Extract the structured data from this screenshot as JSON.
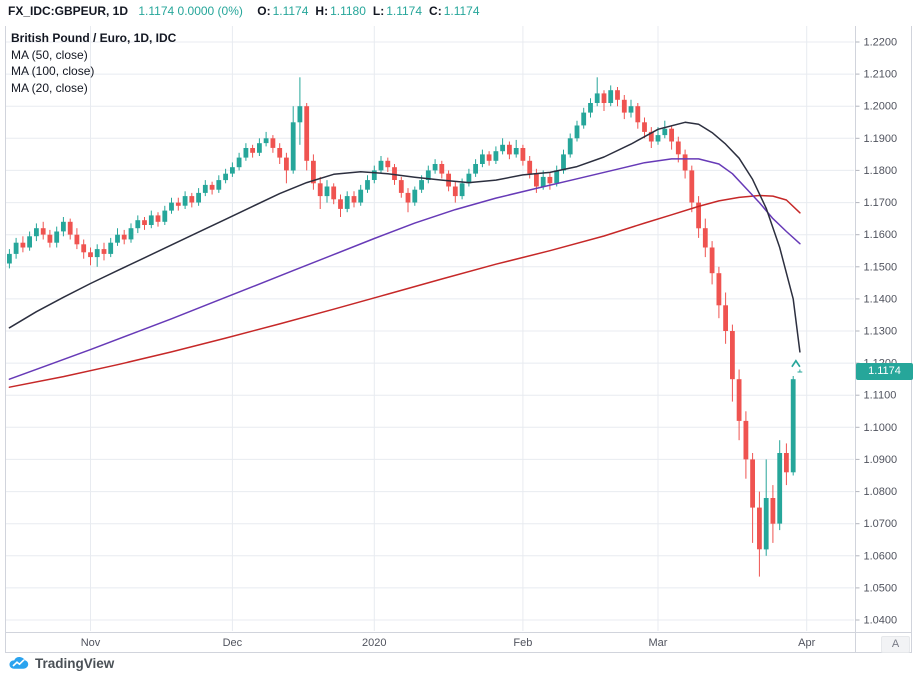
{
  "header": {
    "symbol_interval": "FX_IDC:GBPEUR, 1D",
    "last_change": "1.1174 0.0000 (0%)",
    "ohlc": [
      {
        "k": "O:",
        "v": "1.1174"
      },
      {
        "k": "H:",
        "v": "1.1180"
      },
      {
        "k": "L:",
        "v": "1.1174"
      },
      {
        "k": "C:",
        "v": "1.1174"
      }
    ]
  },
  "legend": {
    "title": "British Pound / Euro, 1D, IDC",
    "indicators": [
      "MA (50, close)",
      "MA (100, close)",
      "MA (20, close)"
    ]
  },
  "price_scale": {
    "last_price_label": "1.1174",
    "corner_button_label": "A"
  },
  "logo": {
    "text": "TradingView"
  },
  "colors": {
    "up": "#26a69a",
    "down": "#ef5350",
    "badge": "#26a69a",
    "grid": "#e8ebf0",
    "axis_text": "#50535e",
    "tick": "#b2b5be",
    "frame": "#d1d4dc",
    "ma20": "#2c2f3f",
    "ma50": "#673ab7",
    "ma100": "#c62828",
    "logo_blue": "#2aa3ef"
  },
  "chart_data": {
    "type": "candlestick",
    "title": "British Pound / Euro, 1D, IDC",
    "symbol": "FX_IDC:GBPEUR",
    "interval": "1D",
    "ylim": [
      1.04,
      1.22
    ],
    "y_step": 0.01,
    "grid": true,
    "y_ticks": [
      1.22,
      1.21,
      1.2,
      1.19,
      1.18,
      1.17,
      1.16,
      1.15,
      1.14,
      1.13,
      1.12,
      1.11,
      1.1,
      1.09,
      1.08,
      1.07,
      1.06,
      1.05,
      1.04
    ],
    "x_ticks": [
      {
        "label": "Nov",
        "i": 12
      },
      {
        "label": "Dec",
        "i": 33
      },
      {
        "label": "2020",
        "i": 54
      },
      {
        "label": "Feb",
        "i": 76
      },
      {
        "label": "Mar",
        "i": 96
      },
      {
        "label": "Apr",
        "i": 118
      }
    ],
    "candles": [
      [
        1.151,
        1.1555,
        1.1495,
        1.154
      ],
      [
        1.154,
        1.159,
        1.1525,
        1.1575
      ],
      [
        1.1575,
        1.1595,
        1.1545,
        1.156
      ],
      [
        1.156,
        1.161,
        1.155,
        1.1595
      ],
      [
        1.1595,
        1.1635,
        1.158,
        1.162
      ],
      [
        1.162,
        1.164,
        1.1585,
        1.16
      ],
      [
        1.16,
        1.1615,
        1.156,
        1.1575
      ],
      [
        1.1575,
        1.1625,
        1.156,
        1.161
      ],
      [
        1.161,
        1.1655,
        1.1595,
        1.164
      ],
      [
        1.164,
        1.165,
        1.1585,
        1.16
      ],
      [
        1.16,
        1.162,
        1.1555,
        1.157
      ],
      [
        1.157,
        1.1585,
        1.1525,
        1.1545
      ],
      [
        1.1545,
        1.156,
        1.1505,
        1.153
      ],
      [
        1.153,
        1.157,
        1.15,
        1.1555
      ],
      [
        1.1555,
        1.1575,
        1.152,
        1.154
      ],
      [
        1.154,
        1.159,
        1.153,
        1.1575
      ],
      [
        1.1575,
        1.162,
        1.1565,
        1.16
      ],
      [
        1.16,
        1.1615,
        1.157,
        1.1585
      ],
      [
        1.1585,
        1.1635,
        1.1575,
        1.162
      ],
      [
        1.162,
        1.166,
        1.1605,
        1.1645
      ],
      [
        1.1645,
        1.1655,
        1.1615,
        1.163
      ],
      [
        1.163,
        1.1675,
        1.162,
        1.166
      ],
      [
        1.166,
        1.167,
        1.1625,
        1.164
      ],
      [
        1.164,
        1.169,
        1.163,
        1.1675
      ],
      [
        1.1675,
        1.1715,
        1.1665,
        1.17
      ],
      [
        1.17,
        1.1715,
        1.1675,
        1.169
      ],
      [
        1.169,
        1.1735,
        1.168,
        1.172
      ],
      [
        1.172,
        1.173,
        1.1685,
        1.17
      ],
      [
        1.17,
        1.1745,
        1.169,
        1.173
      ],
      [
        1.173,
        1.177,
        1.172,
        1.1755
      ],
      [
        1.1755,
        1.1765,
        1.1725,
        1.174
      ],
      [
        1.174,
        1.1785,
        1.173,
        1.177
      ],
      [
        1.177,
        1.1805,
        1.176,
        1.179
      ],
      [
        1.179,
        1.1825,
        1.178,
        1.181
      ],
      [
        1.181,
        1.1855,
        1.18,
        1.184
      ],
      [
        1.184,
        1.1885,
        1.183,
        1.187
      ],
      [
        1.187,
        1.188,
        1.184,
        1.1855
      ],
      [
        1.1855,
        1.19,
        1.1845,
        1.1885
      ],
      [
        1.1885,
        1.192,
        1.1875,
        1.19
      ],
      [
        1.19,
        1.191,
        1.1855,
        1.187
      ],
      [
        1.187,
        1.1885,
        1.182,
        1.184
      ],
      [
        1.184,
        1.1855,
        1.176,
        1.18
      ],
      [
        1.18,
        1.2,
        1.179,
        1.195
      ],
      [
        1.195,
        1.209,
        1.188,
        1.2
      ],
      [
        1.2,
        1.201,
        1.18,
        1.183
      ],
      [
        1.183,
        1.185,
        1.174,
        1.176
      ],
      [
        1.176,
        1.178,
        1.168,
        1.172
      ],
      [
        1.172,
        1.177,
        1.17,
        1.175
      ],
      [
        1.175,
        1.176,
        1.1695,
        1.171
      ],
      [
        1.171,
        1.1725,
        1.1655,
        1.168
      ],
      [
        1.168,
        1.1735,
        1.167,
        1.172
      ],
      [
        1.172,
        1.1735,
        1.1685,
        1.17
      ],
      [
        1.17,
        1.1755,
        1.169,
        1.174
      ],
      [
        1.174,
        1.1785,
        1.173,
        1.177
      ],
      [
        1.177,
        1.1815,
        1.176,
        1.18
      ],
      [
        1.18,
        1.1845,
        1.179,
        1.183
      ],
      [
        1.183,
        1.184,
        1.1795,
        1.181
      ],
      [
        1.181,
        1.182,
        1.1755,
        1.177
      ],
      [
        1.177,
        1.178,
        1.1715,
        1.173
      ],
      [
        1.173,
        1.1745,
        1.167,
        1.17
      ],
      [
        1.17,
        1.175,
        1.169,
        1.174
      ],
      [
        1.174,
        1.1785,
        1.173,
        1.177
      ],
      [
        1.177,
        1.1815,
        1.176,
        1.18
      ],
      [
        1.18,
        1.1835,
        1.179,
        1.182
      ],
      [
        1.182,
        1.183,
        1.1775,
        1.179
      ],
      [
        1.179,
        1.18,
        1.1735,
        1.175
      ],
      [
        1.175,
        1.1765,
        1.17,
        1.172
      ],
      [
        1.172,
        1.1775,
        1.171,
        1.176
      ],
      [
        1.176,
        1.1805,
        1.175,
        1.179
      ],
      [
        1.179,
        1.1835,
        1.178,
        1.182
      ],
      [
        1.182,
        1.1865,
        1.181,
        1.185
      ],
      [
        1.185,
        1.186,
        1.1815,
        1.183
      ],
      [
        1.183,
        1.1875,
        1.182,
        1.186
      ],
      [
        1.186,
        1.19,
        1.185,
        1.188
      ],
      [
        1.188,
        1.189,
        1.1835,
        1.185
      ],
      [
        1.185,
        1.1895,
        1.184,
        1.187
      ],
      [
        1.187,
        1.188,
        1.1815,
        1.183
      ],
      [
        1.183,
        1.1845,
        1.1775,
        1.179
      ],
      [
        1.179,
        1.1805,
        1.173,
        1.175
      ],
      [
        1.175,
        1.18,
        1.174,
        1.178
      ],
      [
        1.178,
        1.1795,
        1.174,
        1.176
      ],
      [
        1.176,
        1.1815,
        1.175,
        1.18
      ],
      [
        1.18,
        1.1865,
        1.179,
        1.185
      ],
      [
        1.185,
        1.1915,
        1.184,
        1.19
      ],
      [
        1.19,
        1.1955,
        1.189,
        1.194
      ],
      [
        1.194,
        1.1995,
        1.193,
        1.198
      ],
      [
        1.198,
        1.2025,
        1.1965,
        1.201
      ],
      [
        1.201,
        1.209,
        1.2,
        1.204
      ],
      [
        1.204,
        1.205,
        1.1985,
        1.201
      ],
      [
        1.201,
        1.2065,
        1.2,
        1.205
      ],
      [
        1.205,
        1.206,
        1.2,
        1.202
      ],
      [
        1.202,
        1.2035,
        1.196,
        1.198
      ],
      [
        1.198,
        1.202,
        1.1965,
        1.2
      ],
      [
        1.2,
        1.201,
        1.193,
        1.195
      ],
      [
        1.195,
        1.1965,
        1.19,
        1.192
      ],
      [
        1.192,
        1.1935,
        1.187,
        1.189
      ],
      [
        1.189,
        1.1935,
        1.188,
        1.191
      ],
      [
        1.191,
        1.1955,
        1.19,
        1.193
      ],
      [
        1.193,
        1.194,
        1.1865,
        1.189
      ],
      [
        1.189,
        1.1905,
        1.1825,
        1.185
      ],
      [
        1.185,
        1.1865,
        1.1775,
        1.18
      ],
      [
        1.18,
        1.1815,
        1.167,
        1.17
      ],
      [
        1.17,
        1.172,
        1.159,
        1.162
      ],
      [
        1.162,
        1.165,
        1.153,
        1.156
      ],
      [
        1.156,
        1.158,
        1.1445,
        1.148
      ],
      [
        1.148,
        1.15,
        1.134,
        1.138
      ],
      [
        1.138,
        1.142,
        1.126,
        1.13
      ],
      [
        1.13,
        1.132,
        1.108,
        1.115
      ],
      [
        1.115,
        1.118,
        1.096,
        1.102
      ],
      [
        1.102,
        1.105,
        1.084,
        1.09
      ],
      [
        1.09,
        1.092,
        1.064,
        1.075
      ],
      [
        1.075,
        1.08,
        1.0535,
        1.062
      ],
      [
        1.062,
        1.09,
        1.06,
        1.078
      ],
      [
        1.078,
        1.082,
        1.064,
        1.07
      ],
      [
        1.07,
        1.096,
        1.068,
        1.092
      ],
      [
        1.092,
        1.095,
        1.082,
        1.086
      ],
      [
        1.086,
        1.116,
        1.085,
        1.115
      ],
      [
        1.1174,
        1.118,
        1.1174,
        1.1174
      ]
    ],
    "overlays": [
      {
        "name": "MA (100, close)",
        "color": "#c62828",
        "points": [
          [
            0,
            1.1125
          ],
          [
            8,
            1.1158
          ],
          [
            16,
            1.1195
          ],
          [
            24,
            1.1235
          ],
          [
            32,
            1.1278
          ],
          [
            40,
            1.1322
          ],
          [
            48,
            1.1368
          ],
          [
            56,
            1.1415
          ],
          [
            64,
            1.1462
          ],
          [
            72,
            1.1508
          ],
          [
            80,
            1.155
          ],
          [
            88,
            1.1596
          ],
          [
            94,
            1.1636
          ],
          [
            98,
            1.1662
          ],
          [
            102,
            1.1688
          ],
          [
            105,
            1.1705
          ],
          [
            108,
            1.1716
          ],
          [
            111,
            1.1722
          ],
          [
            113,
            1.172
          ],
          [
            115,
            1.1708
          ],
          [
            117,
            1.1668
          ]
        ]
      },
      {
        "name": "MA (50, close)",
        "color": "#673ab7",
        "points": [
          [
            0,
            1.115
          ],
          [
            6,
            1.1196
          ],
          [
            12,
            1.1242
          ],
          [
            18,
            1.129
          ],
          [
            24,
            1.1338
          ],
          [
            30,
            1.1388
          ],
          [
            36,
            1.1438
          ],
          [
            42,
            1.1488
          ],
          [
            48,
            1.1538
          ],
          [
            54,
            1.1588
          ],
          [
            60,
            1.1636
          ],
          [
            66,
            1.1678
          ],
          [
            72,
            1.1714
          ],
          [
            78,
            1.1744
          ],
          [
            84,
            1.1774
          ],
          [
            90,
            1.1804
          ],
          [
            94,
            1.1824
          ],
          [
            98,
            1.1836
          ],
          [
            102,
            1.1836
          ],
          [
            105,
            1.182
          ],
          [
            107,
            1.179
          ],
          [
            109,
            1.1745
          ],
          [
            111,
            1.17
          ],
          [
            113,
            1.165
          ],
          [
            115,
            1.161
          ],
          [
            117,
            1.1572
          ]
        ]
      },
      {
        "name": "MA (20, close)",
        "color": "#2c2f3f",
        "points": [
          [
            0,
            1.131
          ],
          [
            4,
            1.136
          ],
          [
            8,
            1.1405
          ],
          [
            12,
            1.1448
          ],
          [
            16,
            1.1488
          ],
          [
            20,
            1.1528
          ],
          [
            24,
            1.1568
          ],
          [
            28,
            1.1608
          ],
          [
            32,
            1.1648
          ],
          [
            36,
            1.1688
          ],
          [
            40,
            1.1728
          ],
          [
            44,
            1.1762
          ],
          [
            48,
            1.1788
          ],
          [
            52,
            1.1796
          ],
          [
            56,
            1.179
          ],
          [
            60,
            1.1779
          ],
          [
            64,
            1.177
          ],
          [
            68,
            1.1762
          ],
          [
            72,
            1.177
          ],
          [
            76,
            1.1786
          ],
          [
            80,
            1.1794
          ],
          [
            84,
            1.1812
          ],
          [
            88,
            1.1842
          ],
          [
            92,
            1.1882
          ],
          [
            96,
            1.1928
          ],
          [
            100,
            1.195
          ],
          [
            102,
            1.1944
          ],
          [
            104,
            1.1918
          ],
          [
            106,
            1.1882
          ],
          [
            108,
            1.1838
          ],
          [
            110,
            1.1772
          ],
          [
            112,
            1.1682
          ],
          [
            114,
            1.156
          ],
          [
            116,
            1.14
          ],
          [
            117,
            1.1235
          ]
        ]
      }
    ],
    "marker": {
      "type": "up-chevron",
      "i": 116.4,
      "price": 1.1198
    }
  }
}
